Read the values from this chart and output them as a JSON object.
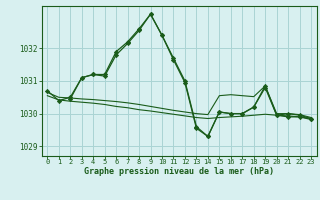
{
  "title": "Graphe pression niveau de la mer (hPa)",
  "background_color": "#d8f0f0",
  "grid_color": "#aad4d4",
  "line_color": "#1a5c1a",
  "xlim": [
    -0.5,
    23.5
  ],
  "ylim": [
    1028.7,
    1033.3
  ],
  "yticks": [
    1029,
    1030,
    1031,
    1032
  ],
  "xticks": [
    0,
    1,
    2,
    3,
    4,
    5,
    6,
    7,
    8,
    9,
    10,
    11,
    12,
    13,
    14,
    15,
    16,
    17,
    18,
    19,
    20,
    21,
    22,
    23
  ],
  "series": [
    {
      "x": [
        0,
        1,
        2,
        3,
        4,
        5,
        6,
        7,
        8,
        9,
        10,
        11,
        12,
        13,
        14,
        15,
        16,
        17,
        18,
        19,
        20,
        21,
        22,
        23
      ],
      "y": [
        1030.7,
        1030.4,
        1030.5,
        1031.1,
        1031.2,
        1031.2,
        1031.9,
        1032.2,
        1032.6,
        1033.05,
        1032.4,
        1031.7,
        1031.0,
        1029.6,
        1029.3,
        1030.05,
        1030.0,
        1030.0,
        1030.2,
        1030.85,
        1029.95,
        1030.0,
        1029.95,
        1029.85
      ],
      "marker": "D",
      "linewidth": 0.9,
      "markersize": 2.2
    },
    {
      "x": [
        0,
        1,
        2,
        3,
        4,
        5,
        6,
        7,
        8,
        9,
        10,
        11,
        12,
        13,
        14,
        15,
        16,
        17,
        18,
        19,
        20,
        21,
        22,
        23
      ],
      "y": [
        1030.55,
        1030.42,
        1030.38,
        1030.35,
        1030.32,
        1030.28,
        1030.22,
        1030.18,
        1030.12,
        1030.08,
        1030.03,
        1029.98,
        1029.93,
        1029.88,
        1029.85,
        1029.88,
        1029.9,
        1029.92,
        1029.95,
        1029.98,
        1029.95,
        1029.93,
        1029.9,
        1029.85
      ],
      "marker": null,
      "linewidth": 0.8,
      "markersize": 0
    },
    {
      "x": [
        0,
        1,
        2,
        3,
        4,
        5,
        6,
        7,
        8,
        9,
        10,
        11,
        12,
        13,
        14,
        15,
        16,
        17,
        18,
        19,
        20,
        21,
        22,
        23
      ],
      "y": [
        1030.65,
        1030.5,
        1030.48,
        1030.45,
        1030.43,
        1030.4,
        1030.37,
        1030.33,
        1030.28,
        1030.22,
        1030.16,
        1030.1,
        1030.05,
        1030.0,
        1029.97,
        1030.55,
        1030.58,
        1030.55,
        1030.52,
        1030.85,
        1030.0,
        1030.0,
        1029.97,
        1029.88
      ],
      "marker": null,
      "linewidth": 0.8,
      "markersize": 0
    },
    {
      "x": [
        2,
        3,
        4,
        5,
        6,
        7,
        8,
        9,
        10,
        11,
        12,
        13,
        14,
        15,
        16,
        17,
        18,
        19,
        20,
        21,
        22,
        23
      ],
      "y": [
        1030.45,
        1031.1,
        1031.2,
        1031.15,
        1031.8,
        1032.15,
        1032.55,
        1033.05,
        1032.4,
        1031.65,
        1030.95,
        1029.55,
        1029.3,
        1030.05,
        1030.0,
        1030.0,
        1030.2,
        1030.8,
        1029.95,
        1029.9,
        1029.9,
        1029.82
      ],
      "marker": "D",
      "linewidth": 0.9,
      "markersize": 2.2
    }
  ]
}
